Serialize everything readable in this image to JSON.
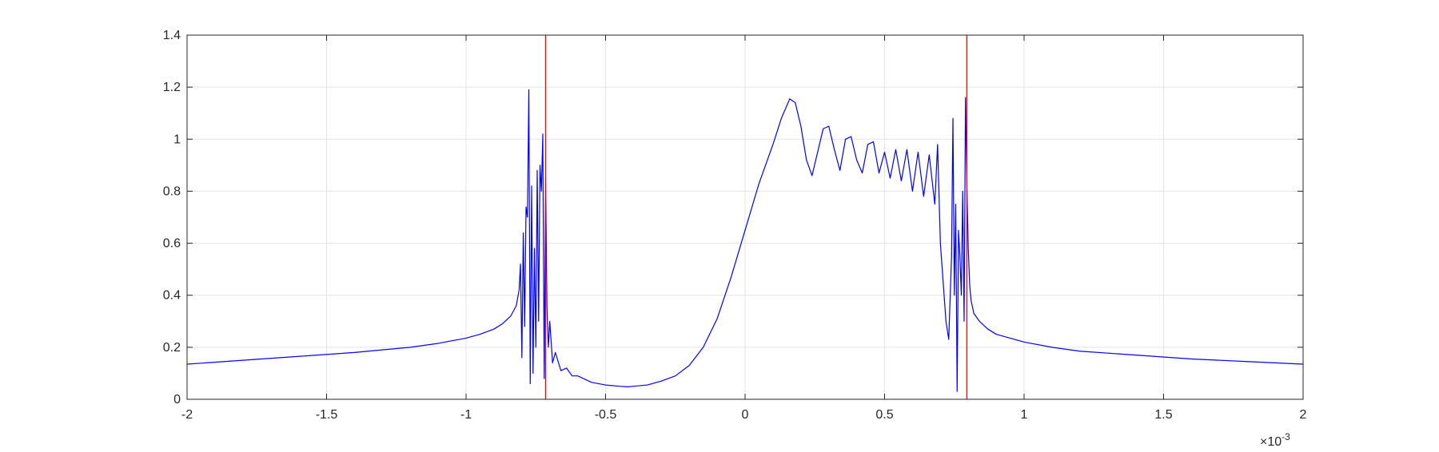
{
  "chart_data": {
    "type": "line",
    "title": "",
    "xlabel": "",
    "ylabel": "",
    "xlim": [
      -2,
      2
    ],
    "ylim": [
      0,
      1.4
    ],
    "x_exponent_label": "×10",
    "x_exponent_power": "-3",
    "x_ticks": [
      -2,
      -1.5,
      -1,
      -0.5,
      0,
      0.5,
      1,
      1.5,
      2
    ],
    "x_tick_labels": [
      "-2",
      "-1.5",
      "-1",
      "-0.5",
      "0",
      "0.5",
      "1",
      "1.5",
      "2"
    ],
    "y_ticks": [
      0,
      0.2,
      0.4,
      0.6,
      0.8,
      1,
      1.2,
      1.4
    ],
    "y_tick_labels": [
      "0",
      "0.2",
      "0.4",
      "0.6",
      "0.8",
      "1",
      "1.2",
      "1.4"
    ],
    "grid": true,
    "box": true,
    "series": [
      {
        "color": "#0000ff",
        "x": [
          -2,
          -1.8,
          -1.6,
          -1.4,
          -1.2,
          -1.1,
          -1.0,
          -0.95,
          -0.9,
          -0.87,
          -0.84,
          -0.82,
          -0.81,
          -0.805,
          -0.8,
          -0.795,
          -0.79,
          -0.785,
          -0.78,
          -0.775,
          -0.77,
          -0.765,
          -0.76,
          -0.755,
          -0.75,
          -0.745,
          -0.74,
          -0.735,
          -0.73,
          -0.725,
          -0.72,
          -0.715,
          -0.71,
          -0.705,
          -0.7,
          -0.69,
          -0.68,
          -0.66,
          -0.64,
          -0.62,
          -0.6,
          -0.55,
          -0.5,
          -0.45,
          -0.42,
          -0.4,
          -0.35,
          -0.3,
          -0.25,
          -0.2,
          -0.15,
          -0.1,
          -0.05,
          0,
          0.05,
          0.1,
          0.13,
          0.16,
          0.18,
          0.2,
          0.22,
          0.24,
          0.26,
          0.28,
          0.3,
          0.32,
          0.34,
          0.36,
          0.38,
          0.4,
          0.42,
          0.44,
          0.46,
          0.48,
          0.5,
          0.52,
          0.54,
          0.56,
          0.58,
          0.6,
          0.62,
          0.64,
          0.66,
          0.68,
          0.69,
          0.7,
          0.71,
          0.72,
          0.73,
          0.74,
          0.745,
          0.75,
          0.755,
          0.76,
          0.765,
          0.77,
          0.775,
          0.78,
          0.785,
          0.79,
          0.795,
          0.8,
          0.805,
          0.81,
          0.82,
          0.84,
          0.87,
          0.9,
          0.95,
          1.0,
          1.1,
          1.2,
          1.4,
          1.6,
          1.8,
          2.0
        ],
        "y": [
          0.135,
          0.15,
          0.165,
          0.18,
          0.2,
          0.215,
          0.235,
          0.25,
          0.27,
          0.29,
          0.32,
          0.36,
          0.42,
          0.52,
          0.16,
          0.64,
          0.28,
          0.74,
          0.7,
          1.19,
          0.06,
          0.82,
          0.1,
          0.58,
          0.2,
          0.88,
          0.3,
          0.9,
          0.8,
          1.02,
          0.08,
          0.85,
          0.35,
          0.2,
          0.3,
          0.14,
          0.18,
          0.11,
          0.12,
          0.09,
          0.09,
          0.065,
          0.055,
          0.05,
          0.048,
          0.05,
          0.055,
          0.07,
          0.09,
          0.13,
          0.2,
          0.31,
          0.47,
          0.65,
          0.83,
          0.98,
          1.08,
          1.155,
          1.14,
          1.05,
          0.92,
          0.86,
          0.95,
          1.04,
          1.05,
          0.96,
          0.88,
          1.0,
          1.01,
          0.92,
          0.87,
          0.98,
          0.99,
          0.87,
          0.95,
          0.85,
          0.96,
          0.84,
          0.96,
          0.8,
          0.95,
          0.78,
          0.94,
          0.75,
          0.98,
          0.6,
          0.45,
          0.3,
          0.23,
          0.55,
          1.08,
          0.4,
          0.75,
          0.03,
          0.65,
          0.55,
          0.4,
          0.8,
          0.3,
          1.16,
          0.82,
          0.58,
          0.44,
          0.38,
          0.33,
          0.3,
          0.27,
          0.25,
          0.235,
          0.22,
          0.2,
          0.185,
          0.17,
          0.155,
          0.145,
          0.135
        ]
      },
      {
        "color": "#ff0000",
        "x": [
          -0.715,
          -0.715
        ],
        "y": [
          0,
          1.4
        ]
      },
      {
        "color": "#ff0000",
        "x": [
          0.795,
          0.795
        ],
        "y": [
          0,
          1.4
        ]
      }
    ]
  }
}
